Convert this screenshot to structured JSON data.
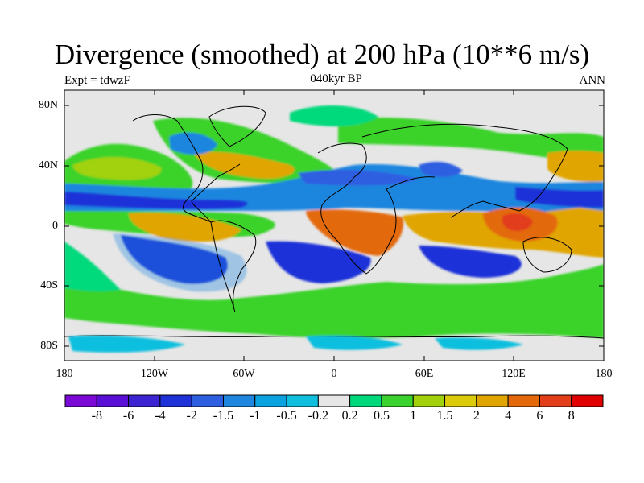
{
  "title": "Divergence (smoothed) at 200 hPa (10**6 m/s)",
  "left_label": "Expt = tdwzF",
  "center_label": "040kyr BP",
  "right_label": "ANN",
  "lat_ticks": [
    "80N",
    "40N",
    "0",
    "40S",
    "80S"
  ],
  "lon_ticks": [
    "180",
    "120W",
    "60W",
    "0",
    "60E",
    "120E",
    "180"
  ],
  "colorbar": {
    "colors": [
      "#7b0ad6",
      "#5a0fd6",
      "#3c24d2",
      "#1e32d8",
      "#2f5fe1",
      "#1f86df",
      "#0aa2df",
      "#10bfde",
      "#e6e6e6",
      "#00d97b",
      "#3ad22c",
      "#a2d10c",
      "#dccb0a",
      "#e0a500",
      "#e3690a",
      "#e23e1a",
      "#e10000"
    ],
    "levels": [
      "-8",
      "-6",
      "-4",
      "-2",
      "-1.5",
      "-1",
      "-0.5",
      "-0.2",
      "0.2",
      "0.5",
      "1",
      "1.5",
      "2",
      "4",
      "6",
      "8"
    ]
  }
}
